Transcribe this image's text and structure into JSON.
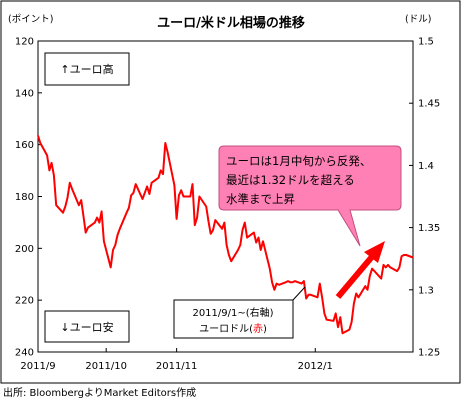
{
  "chart_data": {
    "type": "line",
    "title": "ユーロ/米ドル相場の推移",
    "left_axis_unit": "(ポイント)",
    "right_axis_unit": "(ドル)",
    "y_left": {
      "ticks": [
        120,
        140,
        160,
        180,
        200,
        220,
        240
      ],
      "range": [
        120,
        240
      ],
      "inverted": true
    },
    "y_right": {
      "ticks": [
        1.5,
        1.45,
        1.4,
        1.35,
        1.3,
        1.25
      ],
      "range": [
        1.25,
        1.5
      ]
    },
    "x_ticks": [
      "2011/9",
      "2011/10",
      "2011/11",
      "2012/1"
    ],
    "x_tick_dates": [
      "2011-09-01",
      "2011-10-01",
      "2011-11-01",
      "2012-01-01"
    ],
    "x_range": [
      "2011-09-01",
      "2012-02-13"
    ],
    "grid": false,
    "series": [
      {
        "name": "ユーロドル(赤)",
        "axis": "right",
        "color": "#ff0000",
        "x": [
          "2011-09-01",
          "2011-09-02",
          "2011-09-05",
          "2011-09-06",
          "2011-09-07",
          "2011-09-08",
          "2011-09-09",
          "2011-09-12",
          "2011-09-13",
          "2011-09-14",
          "2011-09-15",
          "2011-09-16",
          "2011-09-19",
          "2011-09-20",
          "2011-09-21",
          "2011-09-22",
          "2011-09-23",
          "2011-09-26",
          "2011-09-27",
          "2011-09-28",
          "2011-09-29",
          "2011-09-30",
          "2011-10-03",
          "2011-10-04",
          "2011-10-05",
          "2011-10-06",
          "2011-10-07",
          "2011-10-10",
          "2011-10-11",
          "2011-10-12",
          "2011-10-13",
          "2011-10-14",
          "2011-10-17",
          "2011-10-18",
          "2011-10-19",
          "2011-10-20",
          "2011-10-21",
          "2011-10-24",
          "2011-10-25",
          "2011-10-26",
          "2011-10-27",
          "2011-10-28",
          "2011-10-31",
          "2011-11-01",
          "2011-11-02",
          "2011-11-03",
          "2011-11-04",
          "2011-11-07",
          "2011-11-08",
          "2011-11-09",
          "2011-11-10",
          "2011-11-11",
          "2011-11-14",
          "2011-11-15",
          "2011-11-16",
          "2011-11-17",
          "2011-11-18",
          "2011-11-21",
          "2011-11-22",
          "2011-11-23",
          "2011-11-24",
          "2011-11-25",
          "2011-11-28",
          "2011-11-29",
          "2011-11-30",
          "2011-12-01",
          "2011-12-02",
          "2011-12-05",
          "2011-12-06",
          "2011-12-07",
          "2011-12-08",
          "2011-12-09",
          "2011-12-12",
          "2011-12-13",
          "2011-12-14",
          "2011-12-15",
          "2011-12-16",
          "2011-12-19",
          "2011-12-20",
          "2011-12-21",
          "2011-12-22",
          "2011-12-23",
          "2011-12-26",
          "2011-12-27",
          "2011-12-28",
          "2011-12-29",
          "2011-12-30",
          "2012-01-02",
          "2012-01-03",
          "2012-01-04",
          "2012-01-05",
          "2012-01-06",
          "2012-01-09",
          "2012-01-10",
          "2012-01-11",
          "2012-01-12",
          "2012-01-13",
          "2012-01-16",
          "2012-01-17",
          "2012-01-18",
          "2012-01-19",
          "2012-01-20",
          "2012-01-23",
          "2012-01-24",
          "2012-01-25",
          "2012-01-26",
          "2012-01-27",
          "2012-01-30",
          "2012-01-31",
          "2012-02-01",
          "2012-02-02",
          "2012-02-03",
          "2012-02-06",
          "2012-02-07",
          "2012-02-08",
          "2012-02-09",
          "2012-02-10",
          "2012-02-13"
        ],
        "values": [
          1.424,
          1.418,
          1.408,
          1.396,
          1.402,
          1.392,
          1.368,
          1.362,
          1.367,
          1.374,
          1.386,
          1.381,
          1.368,
          1.372,
          1.359,
          1.346,
          1.35,
          1.354,
          1.358,
          1.354,
          1.363,
          1.339,
          1.318,
          1.332,
          1.336,
          1.344,
          1.349,
          1.362,
          1.366,
          1.376,
          1.378,
          1.385,
          1.373,
          1.378,
          1.383,
          1.377,
          1.386,
          1.39,
          1.396,
          1.393,
          1.418,
          1.411,
          1.384,
          1.357,
          1.376,
          1.38,
          1.375,
          1.375,
          1.385,
          1.352,
          1.358,
          1.375,
          1.367,
          1.355,
          1.345,
          1.348,
          1.356,
          1.349,
          1.354,
          1.336,
          1.328,
          1.323,
          1.332,
          1.336,
          1.348,
          1.354,
          1.342,
          1.346,
          1.338,
          1.342,
          1.332,
          1.339,
          1.317,
          1.306,
          1.3,
          1.305,
          1.304,
          1.306,
          1.307,
          1.306,
          1.306,
          1.307,
          1.305,
          1.307,
          1.293,
          1.296,
          1.296,
          1.294,
          1.305,
          1.294,
          1.281,
          1.276,
          1.275,
          1.281,
          1.27,
          1.278,
          1.265,
          1.268,
          1.274,
          1.289,
          1.297,
          1.294,
          1.303,
          1.3,
          1.311,
          1.317,
          1.315,
          1.309,
          1.32,
          1.318,
          1.32,
          1.318,
          1.315,
          1.318,
          1.327,
          1.328,
          1.328,
          1.326
        ]
      }
    ],
    "legend": "none"
  },
  "boxes": {
    "top_left": "↑ユーロ高",
    "bottom_left": "↓ユーロ安"
  },
  "callout": {
    "line1": "ユーロは1月中旬から反発、",
    "line2": "最近は1.32ドルを超える",
    "line3": "水準まで上昇",
    "fill": "#ff80b4",
    "border": "#c0507f"
  },
  "series_label": {
    "line1": "2011/9/1~(右軸)",
    "line2_prefix": "ユーロドル(",
    "line2_red": "赤",
    "line2_suffix": ")"
  },
  "arrow_color": "#ff0000",
  "source": "出所: BloombergよりMarket Editors作成"
}
